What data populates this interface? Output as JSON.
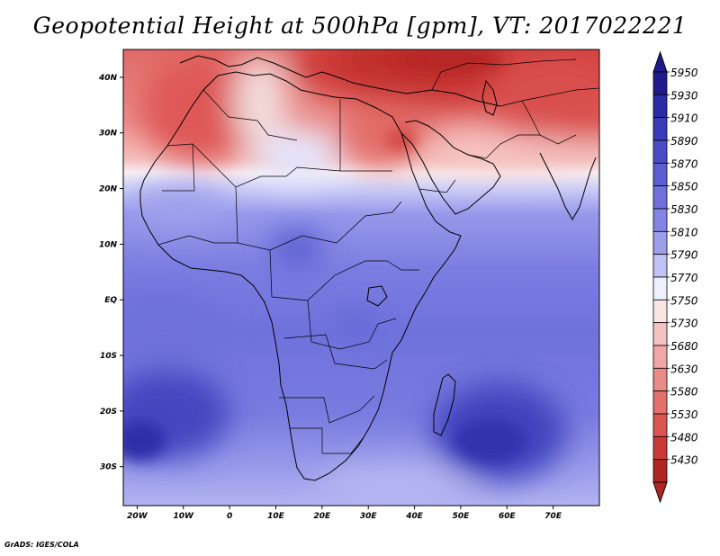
{
  "title": "Geopotential Height at 500hPa [gpm], VT: 2017022221",
  "footer": "GrADS: IGES/COLA",
  "map": {
    "region": "Africa",
    "lon_range": [
      -23,
      80
    ],
    "lat_range": [
      -37,
      45
    ],
    "lon_ticks": [
      {
        "value": -20,
        "label": "20W"
      },
      {
        "value": -10,
        "label": "10W"
      },
      {
        "value": 0,
        "label": "0"
      },
      {
        "value": 10,
        "label": "10E"
      },
      {
        "value": 20,
        "label": "20E"
      },
      {
        "value": 30,
        "label": "30E"
      },
      {
        "value": 40,
        "label": "40E"
      },
      {
        "value": 50,
        "label": "50E"
      },
      {
        "value": 60,
        "label": "60E"
      },
      {
        "value": 70,
        "label": "70E"
      }
    ],
    "lat_ticks": [
      {
        "value": 40,
        "label": "40N"
      },
      {
        "value": 30,
        "label": "30N"
      },
      {
        "value": 20,
        "label": "20N"
      },
      {
        "value": 10,
        "label": "10N"
      },
      {
        "value": 0,
        "label": "EQ"
      },
      {
        "value": -10,
        "label": "10S"
      },
      {
        "value": -20,
        "label": "20S"
      },
      {
        "value": -30,
        "label": "30S"
      }
    ]
  },
  "colorbar": {
    "levels": [
      {
        "label": "5950",
        "color": "#1e1a8c"
      },
      {
        "label": "5930",
        "color": "#2a2ba5"
      },
      {
        "label": "5910",
        "color": "#3a3bb9"
      },
      {
        "label": "5890",
        "color": "#4a4cc6"
      },
      {
        "label": "5870",
        "color": "#5c5ed2"
      },
      {
        "label": "5850",
        "color": "#6f70dc"
      },
      {
        "label": "5830",
        "color": "#8384e4"
      },
      {
        "label": "5810",
        "color": "#9d9eec"
      },
      {
        "label": "5790",
        "color": "#c0c1f5"
      },
      {
        "label": "5770",
        "color": "#eef0ff"
      },
      {
        "label": "5750",
        "color": "#fbe4e4"
      },
      {
        "label": "5730",
        "color": "#f5c4c2"
      },
      {
        "label": "5680",
        "color": "#f0a7a5"
      },
      {
        "label": "5630",
        "color": "#ea8b88"
      },
      {
        "label": "5580",
        "color": "#e3706d"
      },
      {
        "label": "5530",
        "color": "#dc5552"
      },
      {
        "label": "5480",
        "color": "#cc3a38"
      },
      {
        "label": "5430",
        "color": "#b02522"
      }
    ]
  }
}
